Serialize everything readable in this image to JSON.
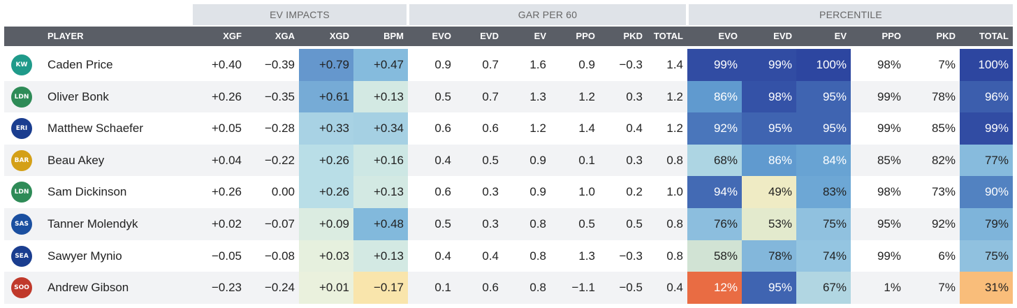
{
  "chart_data": {
    "type": "table",
    "group_headers": [
      "EV IMPACTS",
      "GAR PER 60",
      "PERCENTILE"
    ],
    "columns": [
      "PLAYER",
      "XGF",
      "XGA",
      "XGD",
      "BPM",
      "EVO",
      "EVD",
      "EV",
      "PPO",
      "PKD",
      "TOTAL",
      "EVO",
      "EVD",
      "EV",
      "PPO",
      "PKD",
      "TOTAL"
    ],
    "rows": [
      {
        "player": "Caden Price",
        "xgf": "+0.40",
        "xga": "−0.39",
        "xgd": "+0.79",
        "bpm": "+0.47",
        "gar": [
          "0.9",
          "0.7",
          "1.6",
          "0.9",
          "−0.3",
          "1.4"
        ],
        "pct": [
          "99%",
          "99%",
          "100%",
          "98%",
          "7%",
          "100%"
        ]
      },
      {
        "player": "Oliver Bonk",
        "xgf": "+0.26",
        "xga": "−0.35",
        "xgd": "+0.61",
        "bpm": "+0.13",
        "gar": [
          "0.5",
          "0.7",
          "1.3",
          "1.2",
          "0.3",
          "1.2"
        ],
        "pct": [
          "86%",
          "98%",
          "95%",
          "99%",
          "78%",
          "96%"
        ]
      },
      {
        "player": "Matthew Schaefer",
        "xgf": "+0.05",
        "xga": "−0.28",
        "xgd": "+0.33",
        "bpm": "+0.34",
        "gar": [
          "0.6",
          "0.6",
          "1.2",
          "1.4",
          "0.4",
          "1.2"
        ],
        "pct": [
          "92%",
          "95%",
          "95%",
          "99%",
          "85%",
          "99%"
        ]
      },
      {
        "player": "Beau Akey",
        "xgf": "+0.04",
        "xga": "−0.22",
        "xgd": "+0.26",
        "bpm": "+0.16",
        "gar": [
          "0.4",
          "0.5",
          "0.9",
          "0.1",
          "0.3",
          "0.8"
        ],
        "pct": [
          "68%",
          "86%",
          "84%",
          "85%",
          "82%",
          "77%"
        ]
      },
      {
        "player": "Sam Dickinson",
        "xgf": "+0.26",
        "xga": "0.00",
        "xgd": "+0.26",
        "bpm": "+0.13",
        "gar": [
          "0.6",
          "0.3",
          "0.9",
          "1.0",
          "0.2",
          "1.0"
        ],
        "pct": [
          "94%",
          "49%",
          "83%",
          "98%",
          "73%",
          "90%"
        ]
      },
      {
        "player": "Tanner Molendyk",
        "xgf": "+0.02",
        "xga": "−0.07",
        "xgd": "+0.09",
        "bpm": "+0.48",
        "gar": [
          "0.5",
          "0.3",
          "0.8",
          "0.5",
          "0.5",
          "0.8"
        ],
        "pct": [
          "76%",
          "53%",
          "75%",
          "95%",
          "92%",
          "79%"
        ]
      },
      {
        "player": "Sawyer Mynio",
        "xgf": "−0.05",
        "xga": "−0.08",
        "xgd": "+0.03",
        "bpm": "+0.13",
        "gar": [
          "0.4",
          "0.4",
          "0.8",
          "1.3",
          "−0.3",
          "0.8"
        ],
        "pct": [
          "58%",
          "78%",
          "74%",
          "99%",
          "6%",
          "75%"
        ]
      },
      {
        "player": "Andrew Gibson",
        "xgf": "−0.23",
        "xga": "−0.24",
        "xgd": "+0.01",
        "bpm": "−0.17",
        "gar": [
          "0.1",
          "0.6",
          "0.8",
          "−1.1",
          "−0.5",
          "0.4"
        ],
        "pct": [
          "12%",
          "95%",
          "67%",
          "1%",
          "7%",
          "31%"
        ]
      }
    ],
    "team_logos": [
      {
        "icon": "team-logo-icon",
        "color": "#1f9a8a",
        "label": "KW"
      },
      {
        "icon": "team-logo-icon",
        "color": "#2e8b57",
        "label": "LDN"
      },
      {
        "icon": "team-logo-icon",
        "color": "#1a3d8f",
        "label": "ERI"
      },
      {
        "icon": "team-logo-icon",
        "color": "#d4a017",
        "label": "BAR"
      },
      {
        "icon": "team-logo-icon",
        "color": "#2e8b57",
        "label": "LDN"
      },
      {
        "icon": "team-logo-icon",
        "color": "#1a4fa0",
        "label": "SAS"
      },
      {
        "icon": "team-logo-icon",
        "color": "#1a3d8f",
        "label": "SEA"
      },
      {
        "icon": "team-logo-icon",
        "color": "#c0392b",
        "label": "SOO"
      }
    ]
  }
}
